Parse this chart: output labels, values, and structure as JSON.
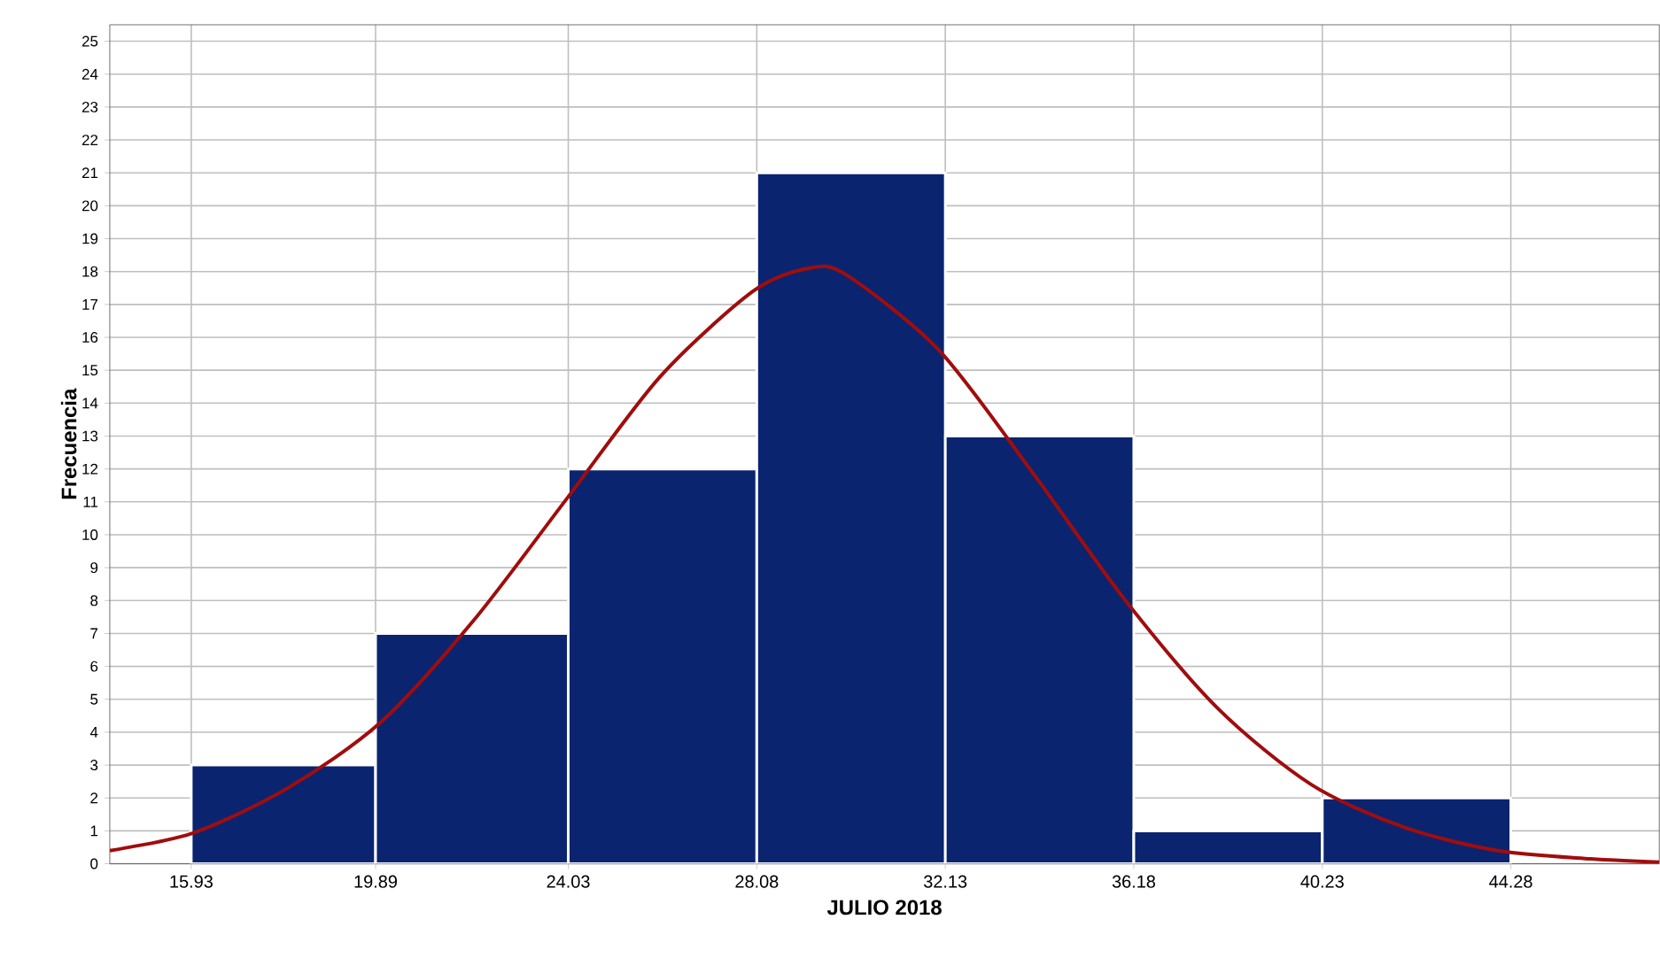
{
  "chart_data": {
    "type": "histogram",
    "xlabel": "JULIO 2018",
    "ylabel": "Frecuencia",
    "bins": [
      15.93,
      19.89,
      24.03,
      28.08,
      32.13,
      36.18,
      40.23,
      44.28
    ],
    "values": [
      3,
      7,
      12,
      21,
      13,
      1,
      2
    ],
    "color": "#0b2470",
    "series": [
      {
        "type": "line",
        "color": "#a00d0d",
        "x": [
          14.18,
          16,
          18,
          20,
          22,
          24,
          26,
          28,
          29.2,
          30,
          32,
          34,
          36,
          38,
          40,
          42,
          44,
          46,
          47.47
        ],
        "values": [
          0.4,
          0.95,
          2.3,
          4.3,
          7.4,
          11.1,
          14.8,
          17.4,
          18.1,
          17.9,
          15.6,
          11.9,
          8.0,
          4.7,
          2.4,
          1.1,
          0.4,
          0.15,
          0.05
        ]
      }
    ],
    "xlim": [
      14.18,
      47.47
    ],
    "ylim": [
      0,
      25.5
    ],
    "xticks": [
      15.93,
      19.89,
      24.03,
      28.08,
      32.13,
      36.18,
      40.23,
      44.28
    ],
    "yticks": [
      0,
      1,
      2,
      3,
      4,
      5,
      6,
      7,
      8,
      9,
      10,
      11,
      12,
      13,
      14,
      15,
      16,
      17,
      18,
      19,
      20,
      21,
      22,
      23,
      24,
      25
    ],
    "grid": true
  }
}
